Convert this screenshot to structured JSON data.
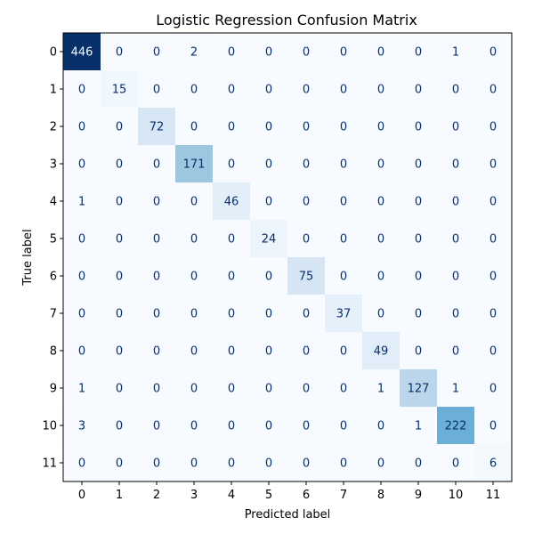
{
  "chart_data": {
    "type": "heatmap",
    "title": "Logistic Regression Confusion Matrix",
    "xlabel": "Predicted label",
    "ylabel": "True label",
    "x_ticks": [
      "0",
      "1",
      "2",
      "3",
      "4",
      "5",
      "6",
      "7",
      "8",
      "9",
      "10",
      "11"
    ],
    "y_ticks": [
      "0",
      "1",
      "2",
      "3",
      "4",
      "5",
      "6",
      "7",
      "8",
      "9",
      "10",
      "11"
    ],
    "colormap": "Blues",
    "color_range": [
      0,
      446
    ],
    "matrix": [
      [
        446,
        0,
        0,
        2,
        0,
        0,
        0,
        0,
        0,
        0,
        1,
        0
      ],
      [
        0,
        15,
        0,
        0,
        0,
        0,
        0,
        0,
        0,
        0,
        0,
        0
      ],
      [
        0,
        0,
        72,
        0,
        0,
        0,
        0,
        0,
        0,
        0,
        0,
        0
      ],
      [
        0,
        0,
        0,
        171,
        0,
        0,
        0,
        0,
        0,
        0,
        0,
        0
      ],
      [
        1,
        0,
        0,
        0,
        46,
        0,
        0,
        0,
        0,
        0,
        0,
        0
      ],
      [
        0,
        0,
        0,
        0,
        0,
        24,
        0,
        0,
        0,
        0,
        0,
        0
      ],
      [
        0,
        0,
        0,
        0,
        0,
        0,
        75,
        0,
        0,
        0,
        0,
        0
      ],
      [
        0,
        0,
        0,
        0,
        0,
        0,
        0,
        37,
        0,
        0,
        0,
        0
      ],
      [
        0,
        0,
        0,
        0,
        0,
        0,
        0,
        0,
        49,
        0,
        0,
        0
      ],
      [
        1,
        0,
        0,
        0,
        0,
        0,
        0,
        0,
        1,
        127,
        1,
        0
      ],
      [
        3,
        0,
        0,
        0,
        0,
        0,
        0,
        0,
        0,
        1,
        222,
        0
      ],
      [
        0,
        0,
        0,
        0,
        0,
        0,
        0,
        0,
        0,
        0,
        0,
        6
      ]
    ],
    "grid": false,
    "legend": "none"
  }
}
